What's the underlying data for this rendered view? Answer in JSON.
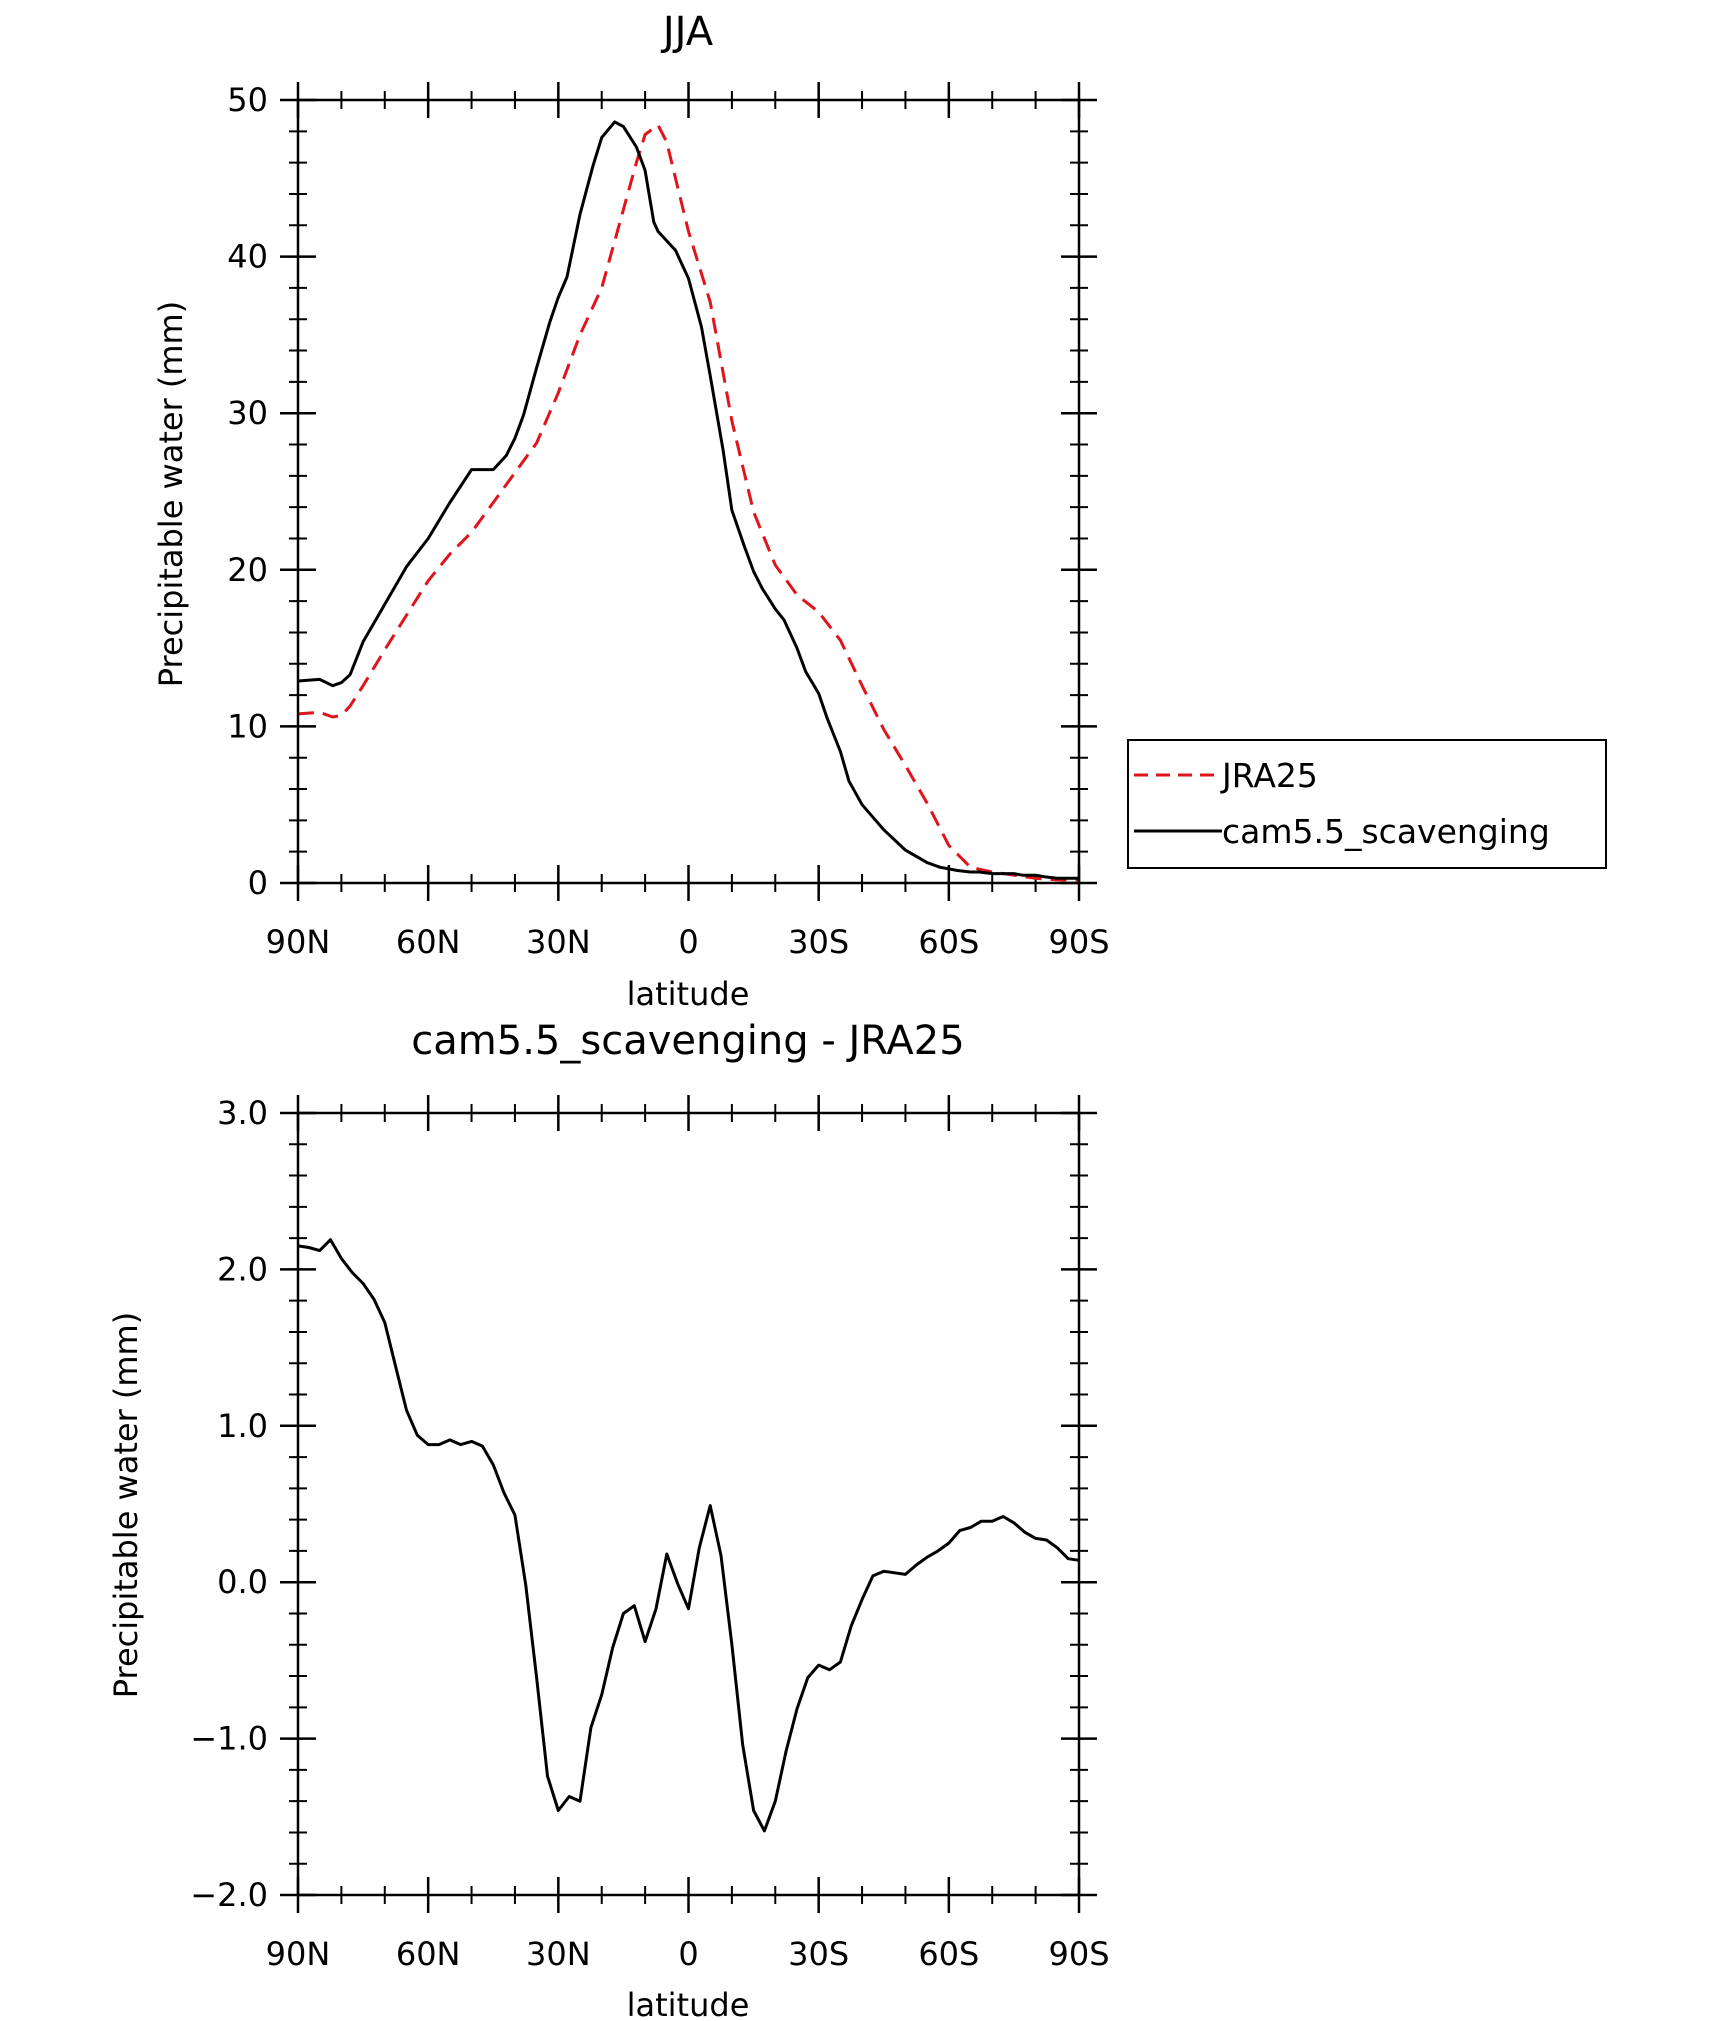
{
  "chart_data": [
    {
      "type": "line",
      "title": "JJA",
      "xlabel": "latitude",
      "ylabel": "Precipitable water (mm)",
      "xlim": [
        90,
        -90
      ],
      "ylim": [
        0,
        50
      ],
      "x_ticks": [
        {
          "value": 90,
          "label": "90N"
        },
        {
          "value": 60,
          "label": "60N"
        },
        {
          "value": 30,
          "label": "30N"
        },
        {
          "value": 0,
          "label": "0"
        },
        {
          "value": -30,
          "label": "30S"
        },
        {
          "value": -60,
          "label": "60S"
        },
        {
          "value": -90,
          "label": "90S"
        }
      ],
      "y_ticks": [
        {
          "value": 0,
          "label": "0"
        },
        {
          "value": 10,
          "label": "10"
        },
        {
          "value": 20,
          "label": "20"
        },
        {
          "value": 30,
          "label": "30"
        },
        {
          "value": 40,
          "label": "40"
        },
        {
          "value": 50,
          "label": "50"
        }
      ],
      "legend": {
        "position": "right"
      },
      "series": [
        {
          "name": "JRA25",
          "color": "#e0151b",
          "dash": "dashed",
          "x": [
            90,
            85,
            82,
            80,
            78,
            75,
            70,
            65,
            60,
            55,
            50,
            45,
            40,
            35,
            30,
            25,
            20,
            15,
            12,
            10,
            7,
            5,
            3,
            0,
            -5,
            -10,
            -15,
            -20,
            -25,
            -30,
            -35,
            -40,
            -45,
            -50,
            -55,
            -60,
            -65,
            -70,
            -75,
            -80,
            -85,
            -88,
            -90
          ],
          "y": [
            10.8,
            10.9,
            10.6,
            10.7,
            11.3,
            12.6,
            14.9,
            17.1,
            19.3,
            21.0,
            22.4,
            24.3,
            26.2,
            28.1,
            31.3,
            35.0,
            38.0,
            43.0,
            46.0,
            47.8,
            48.4,
            47.3,
            45.0,
            41.6,
            37.1,
            29.5,
            23.7,
            20.3,
            18.4,
            17.3,
            15.5,
            12.6,
            9.8,
            7.5,
            5.1,
            2.4,
            1.0,
            0.7,
            0.5,
            0.3,
            0.2,
            0.2,
            0.2
          ]
        },
        {
          "name": "cam5.5_scavenging",
          "color": "#000000",
          "dash": "solid",
          "x": [
            90,
            85,
            82,
            80,
            78,
            75,
            70,
            65,
            60,
            55,
            50,
            45,
            42,
            40,
            38,
            35,
            32,
            30,
            28,
            25,
            22,
            20,
            17,
            15,
            12,
            10,
            8,
            7,
            5,
            3,
            0,
            -3,
            -5,
            -8,
            -10,
            -13,
            -15,
            -17,
            -20,
            -22,
            -25,
            -27,
            -30,
            -32,
            -35,
            -37,
            -40,
            -45,
            -50,
            -55,
            -58,
            -60,
            -62,
            -65,
            -67,
            -70,
            -72,
            -75,
            -77,
            -80,
            -82,
            -85,
            -87,
            -90
          ],
          "y": [
            12.9,
            13.0,
            12.6,
            12.8,
            13.3,
            15.4,
            17.8,
            20.2,
            22.0,
            24.3,
            26.4,
            26.4,
            27.3,
            28.4,
            29.9,
            32.9,
            35.8,
            37.4,
            38.7,
            42.7,
            45.8,
            47.6,
            48.6,
            48.3,
            47.0,
            45.5,
            42.2,
            41.6,
            41.0,
            40.4,
            38.6,
            35.5,
            32.4,
            27.6,
            23.8,
            21.4,
            19.9,
            18.8,
            17.5,
            16.8,
            15.0,
            13.5,
            12.1,
            10.5,
            8.4,
            6.5,
            5.0,
            3.4,
            2.1,
            1.3,
            1.0,
            0.9,
            0.8,
            0.7,
            0.7,
            0.6,
            0.6,
            0.6,
            0.5,
            0.5,
            0.4,
            0.3,
            0.3,
            0.3
          ]
        }
      ]
    },
    {
      "type": "line",
      "title": "cam5.5_scavenging - JRA25",
      "xlabel": "latitude",
      "ylabel": "Precipitable water (mm)",
      "xlim": [
        90,
        -90
      ],
      "ylim": [
        -2.0,
        3.0
      ],
      "x_ticks": [
        {
          "value": 90,
          "label": "90N"
        },
        {
          "value": 60,
          "label": "60N"
        },
        {
          "value": 30,
          "label": "30N"
        },
        {
          "value": 0,
          "label": "0"
        },
        {
          "value": -30,
          "label": "30S"
        },
        {
          "value": -60,
          "label": "60S"
        },
        {
          "value": -90,
          "label": "90S"
        }
      ],
      "y_ticks": [
        {
          "value": -2.0,
          "label": "−2.0"
        },
        {
          "value": -1.0,
          "label": "−1.0"
        },
        {
          "value": 0.0,
          "label": "0.0"
        },
        {
          "value": 1.0,
          "label": "1.0"
        },
        {
          "value": 2.0,
          "label": "2.0"
        },
        {
          "value": 3.0,
          "label": "3.0"
        }
      ],
      "series": [
        {
          "color": "#000000",
          "dash": "solid",
          "x": [
            90,
            87.5,
            85,
            82.5,
            80,
            77.5,
            75,
            72.5,
            70,
            67.5,
            65,
            62.5,
            60,
            57.5,
            55,
            52.5,
            50,
            47.5,
            45,
            42.5,
            40,
            37.5,
            35,
            32.5,
            30,
            27.5,
            25,
            22.5,
            20,
            17.5,
            15,
            12.5,
            10,
            7.5,
            5,
            2.5,
            0,
            -2.5,
            -5,
            -7.5,
            -10,
            -12.5,
            -15,
            -17.5,
            -20,
            -22.5,
            -25,
            -27.5,
            -30,
            -32.5,
            -35,
            -37.5,
            -40,
            -42.5,
            -45,
            -47.5,
            -50,
            -52.5,
            -55,
            -57.5,
            -60,
            -62.5,
            -65,
            -67.5,
            -70,
            -72.5,
            -75,
            -77.5,
            -80,
            -82.5,
            -85,
            -87.5,
            -90
          ],
          "y": [
            2.15,
            2.14,
            2.12,
            2.19,
            2.07,
            1.98,
            1.91,
            1.81,
            1.66,
            1.38,
            1.1,
            0.94,
            0.88,
            0.88,
            0.91,
            0.88,
            0.9,
            0.87,
            0.75,
            0.57,
            0.43,
            -0.02,
            -0.61,
            -1.24,
            -1.46,
            -1.37,
            -1.4,
            -0.93,
            -0.72,
            -0.42,
            -0.2,
            -0.15,
            -0.38,
            -0.17,
            0.18,
            -0.01,
            -0.17,
            0.22,
            0.49,
            0.17,
            -0.4,
            -1.04,
            -1.46,
            -1.59,
            -1.4,
            -1.08,
            -0.81,
            -0.61,
            -0.53,
            -0.56,
            -0.51,
            -0.28,
            -0.11,
            0.04,
            0.07,
            0.06,
            0.05,
            0.11,
            0.16,
            0.2,
            0.25,
            0.33,
            0.35,
            0.39,
            0.39,
            0.42,
            0.38,
            0.32,
            0.28,
            0.27,
            0.22,
            0.15,
            0.14
          ]
        }
      ]
    }
  ]
}
